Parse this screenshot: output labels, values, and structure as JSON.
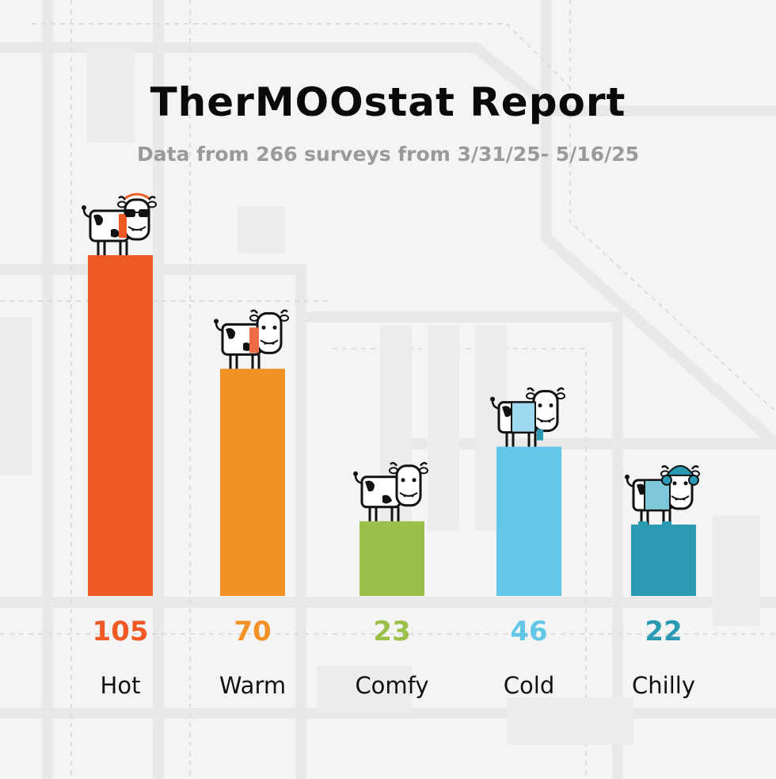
{
  "title": "TherMOOstat Report",
  "subtitle": "Data from 266 surveys from 3/31/25- 5/16/25",
  "colors": {
    "hot": "#ef5a24",
    "warm": "#f39224",
    "comfy": "#9bc04a",
    "cold": "#62c6e6",
    "chilly": "#2a9ab3",
    "background": "#f4f4f4"
  },
  "chart_data": {
    "type": "bar",
    "categories": [
      "Hot",
      "Warm",
      "Comfy",
      "Cold",
      "Chilly"
    ],
    "values": [
      105,
      70,
      23,
      46,
      22
    ],
    "value_labels": [
      "105",
      "70",
      "23",
      "46",
      "22"
    ],
    "bar_colors": [
      "#ef5a24",
      "#f39224",
      "#9bc04a",
      "#62c6e6",
      "#2a9ab3"
    ],
    "icons": [
      "cow-sunglasses-icon",
      "cow-icon",
      "cow-icon",
      "cow-scarf-icon",
      "cow-earmuffs-icon"
    ],
    "ylim": [
      0,
      105
    ],
    "grid": false,
    "legend": "none"
  }
}
